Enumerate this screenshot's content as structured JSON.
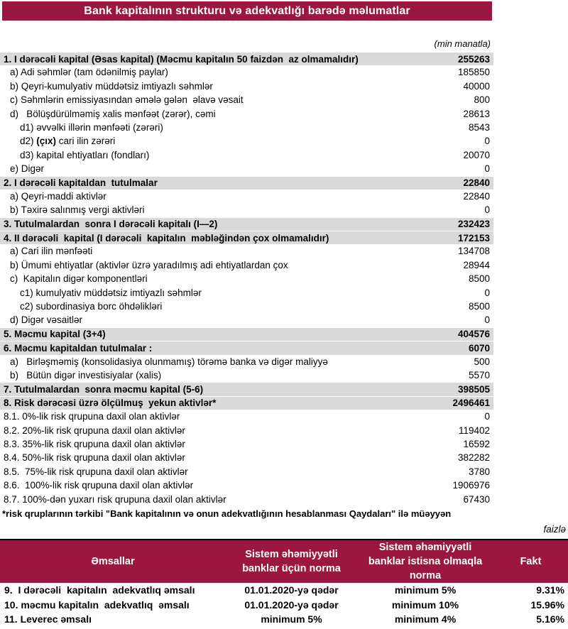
{
  "title": "Bank kapitalının strukturu və adekvatlığı barədə məlumatlar",
  "unit_note": "(min manatla)",
  "percent_note": "faizlə",
  "footnote": "*risk qruplarının tərkibi \"Bank kapitalının və onun adekvatlığının hesablanması Qaydaları\" ilə müəyyən",
  "colors": {
    "maroon": "#9B1740",
    "gray_row": "#D9D9D9"
  },
  "main_table": {
    "rows": [
      {
        "label": "1. I dərəcəli kapital (Əsas kapital) (Məcmu kapitalın 50 faizdən  az olmamalıdır)",
        "value": "255263",
        "style": "section",
        "indent": 0
      },
      {
        "label": "a) Adi səhmlər (tam ödənilmiş paylar)",
        "value": "185850",
        "indent": 1
      },
      {
        "label": "b) Qeyri-kumulyativ müddətsiz imtiyazlı səhmlər",
        "value": "40000",
        "indent": 1
      },
      {
        "label": "c) Səhmlərin emissiyasından əmələ gələn  əlavə vəsait",
        "value": "800",
        "indent": 1
      },
      {
        "label": "d)   Bölüşdürülməmiş xalis mənfəət (zərər), cəmi",
        "value": "28613",
        "indent": 1
      },
      {
        "label": "d1) əvvəlki illərin mənfəəti (zərəri)",
        "value": "8543",
        "indent": 2
      },
      {
        "label": "d2) (çıx) cari ilin zərəri",
        "value": "0",
        "indent": 2,
        "bold_segment": "(çıx)"
      },
      {
        "label": "d3) kapital ehtiyatları (fondları)",
        "value": "20070",
        "indent": 2
      },
      {
        "label": "e) Digər",
        "value": "0",
        "indent": 1
      },
      {
        "label": "2. I dərəcəli kapitaldan  tutulmalar",
        "value": "22840",
        "style": "section",
        "indent": 0
      },
      {
        "label": "a) Qeyri-maddi aktivlər",
        "value": "22840",
        "indent": 1
      },
      {
        "label": "b) Təxirə salınmış vergi aktivləri",
        "value": "0",
        "indent": 1
      },
      {
        "label": "3. Tutulmalardan  sonra I dərəcəli kapitalı (I—2)",
        "value": "232423",
        "style": "section",
        "indent": 0
      },
      {
        "label": "4. II dərəcəli  kapital (I dərəcəli  kapitalın  məbləğindən çox olmamalıdır)",
        "value": "172153",
        "style": "section",
        "indent": 0
      },
      {
        "label": "a) Cari ilin mənfəəti",
        "value": "134708",
        "indent": 1
      },
      {
        "label": "b) Ümumi ehtiyatlar (aktivlər üzrə yaradılmış adi ehtiyatlardan çox",
        "value": "28944",
        "indent": 1
      },
      {
        "label": "c)  Kapitalın digər komponentləri",
        "value": "8500",
        "indent": 1
      },
      {
        "label": "c1) kumulyativ müddətsiz imtiyazlı səhmlər",
        "value": "0",
        "indent": 2
      },
      {
        "label": "c2) subordinasiya borc öhdəlikləri",
        "value": "8500",
        "indent": 2
      },
      {
        "label": "d) Digər vəsaitlər",
        "value": "0",
        "indent": 1
      },
      {
        "label": "5. Məcmu kapital (3+4)",
        "value": "404576",
        "style": "section",
        "indent": 0
      },
      {
        "label": "6. Məcmu kapitaldan tutulmalar :",
        "value": "6070",
        "style": "section",
        "indent": 0
      },
      {
        "label": "a)   Birləşməmiş (konsolidasiya olunmamış) törəmə banka və digər maliyyə",
        "value": "500",
        "indent": 1
      },
      {
        "label": "b)   Bütün digər investisiyalar (xalis)",
        "value": "5570",
        "indent": 1
      },
      {
        "label": "7. Tutulmalardan  sonra məcmu kapital (5-6)",
        "value": "398505",
        "style": "section",
        "indent": 0
      },
      {
        "label": "8. Risk dərəcəsi üzrə ölçülmuş  yekun aktivlər*",
        "value": "2496461",
        "style": "section",
        "indent": 0
      },
      {
        "label": "8.1. 0%-lik risk qrupuna daxil olan aktivlər",
        "value": "0",
        "indent": 0
      },
      {
        "label": "8.2. 20%-lik risk qrupuna daxil olan aktivlər",
        "value": "119402",
        "indent": 0
      },
      {
        "label": "8.3. 35%-lik risk qrupuna daxil olan aktivlər",
        "value": "16592",
        "indent": 0
      },
      {
        "label": "8.4. 50%-lik risk qrupuna daxil olan aktivlər",
        "value": "382282",
        "indent": 0
      },
      {
        "label": "8.5.  75%-lik risk qrupuna daxil olan aktivlər",
        "value": "3780",
        "indent": 0
      },
      {
        "label": "8.6.  100%-lik risk qrupuna daxil olan aktivlər",
        "value": "1906976",
        "indent": 0
      },
      {
        "label": "8.7. 100%-dən yuxarı risk qrupuna daxil olan aktivlər",
        "value": "67430",
        "indent": 0
      }
    ]
  },
  "ratio_table": {
    "headers": [
      "Əmsallar",
      "Sistem əhəmiyyətli banklar üçün norma",
      "Sistem əhəmiyyətli banklar istisna olmaqla norma",
      "Fakt"
    ],
    "rows": [
      [
        "9.  I dərəcəli  kapitalın  adekvatlıq əmsalı",
        "01.01.2020-yə qədər",
        "minimum 5%",
        "9.31%"
      ],
      [
        "10. məcmu kapitalın  adekvatlıq  əmsalı",
        "01.01.2020-yə qədər",
        "minimum 10%",
        "15.96%"
      ],
      [
        "11. Leverec əmsalı",
        "minimum 5%",
        "minimum 4%",
        "5.16%"
      ]
    ]
  }
}
